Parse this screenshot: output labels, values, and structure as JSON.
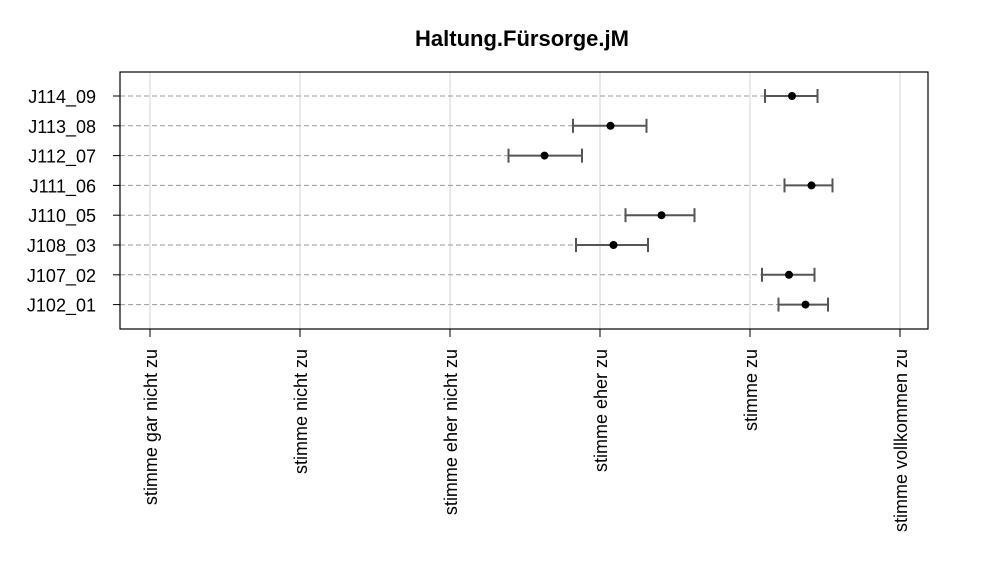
{
  "chart_data": {
    "type": "errorbar",
    "title": "Haltung.Fürsorge.jM",
    "xlabel": "",
    "ylabel": "",
    "x_tick_labels": [
      "stimme gar nicht zu",
      "stimme nicht zu",
      "stimme eher nicht zu",
      "stimme eher zu",
      "stimme zu",
      "stimme vollkommen zu"
    ],
    "x_tick_values": [
      1,
      2,
      3,
      4,
      5,
      6
    ],
    "xlim": [
      0.8,
      6.2
    ],
    "categories": [
      "J102_01",
      "J107_02",
      "J108_03",
      "J110_05",
      "J111_06",
      "J112_07",
      "J113_08",
      "J114_09"
    ],
    "means": [
      5.37,
      5.26,
      4.09,
      4.41,
      5.41,
      3.63,
      4.07,
      5.28
    ],
    "lower": [
      5.19,
      5.08,
      3.84,
      4.17,
      5.23,
      3.39,
      3.82,
      5.1
    ],
    "upper": [
      5.52,
      5.43,
      4.32,
      4.63,
      5.55,
      3.88,
      4.31,
      5.45
    ],
    "grid": true,
    "legend": "none"
  }
}
